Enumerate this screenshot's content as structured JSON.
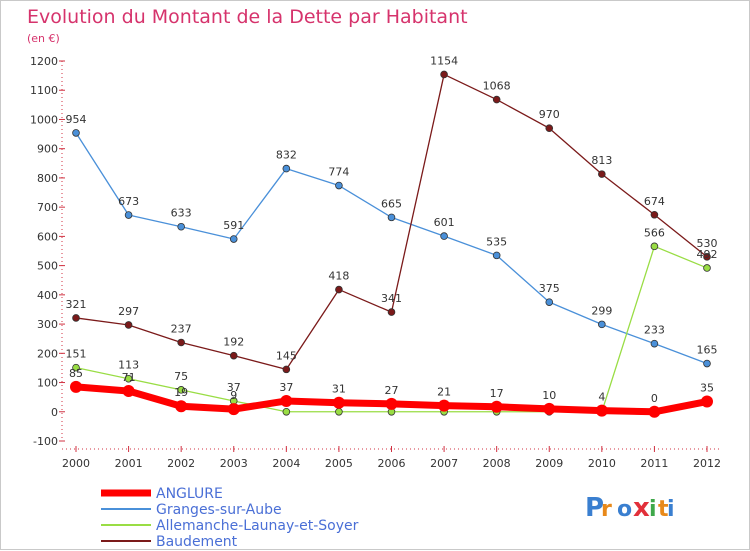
{
  "chart_data": {
    "type": "line",
    "title": "Evolution du Montant de la Dette par Habitant",
    "subtitle": "(en €)",
    "xlabel": "",
    "ylabel": "",
    "x": [
      "2000",
      "2001",
      "2002",
      "2003",
      "2004",
      "2005",
      "2006",
      "2007",
      "2008",
      "2009",
      "2010",
      "2011",
      "2012"
    ],
    "ylim": [
      -100,
      1200
    ],
    "yticks": [
      "-100",
      "0",
      "100",
      "200",
      "300",
      "400",
      "500",
      "600",
      "700",
      "800",
      "900",
      "1000",
      "1100",
      "1200"
    ],
    "grid": false,
    "legend_position": "bottom-left",
    "series": [
      {
        "name": "ANGLURE",
        "color": "#ff0000",
        "values": [
          85,
          71,
          19,
          9,
          37,
          31,
          27,
          21,
          17,
          10,
          4,
          0,
          35
        ],
        "labels": [
          "85",
          "71",
          "19",
          "9",
          "37",
          "31",
          "27",
          "21",
          "17",
          "10",
          "4",
          "0",
          "35"
        ]
      },
      {
        "name": "Granges-sur-Aube",
        "color": "#4a90d9",
        "values": [
          954,
          673,
          633,
          591,
          832,
          774,
          665,
          601,
          535,
          375,
          299,
          233,
          165
        ],
        "labels": [
          "954",
          "673",
          "633",
          "591",
          "832",
          "774",
          "665",
          "601",
          "535",
          "375",
          "299",
          "233",
          "165"
        ]
      },
      {
        "name": "Allemanche-Launay-et-Soyer",
        "color": "#99dd44",
        "values": [
          151,
          113,
          75,
          37,
          0,
          0,
          0,
          0,
          0,
          0,
          0,
          566,
          492
        ],
        "labels": [
          "151",
          "113",
          "75",
          "37",
          "",
          "",
          "",
          "",
          "",
          "",
          "",
          "566",
          "492"
        ]
      },
      {
        "name": "Baudement",
        "color": "#7b1a1a",
        "values": [
          321,
          297,
          237,
          192,
          145,
          418,
          341,
          1154,
          1068,
          970,
          813,
          674,
          530
        ],
        "labels": [
          "321",
          "297",
          "237",
          "192",
          "145",
          "418",
          "341",
          "1154",
          "1068",
          "970",
          "813",
          "674",
          "530"
        ]
      }
    ]
  },
  "brand": {
    "logo_text": "Proxiti",
    "letter_colors": [
      "#3a7fd0",
      "#e8891a",
      "#3a7fd0",
      "#e2303a",
      "#3fa84a",
      "#e8891a",
      "#3a7fd0"
    ]
  }
}
